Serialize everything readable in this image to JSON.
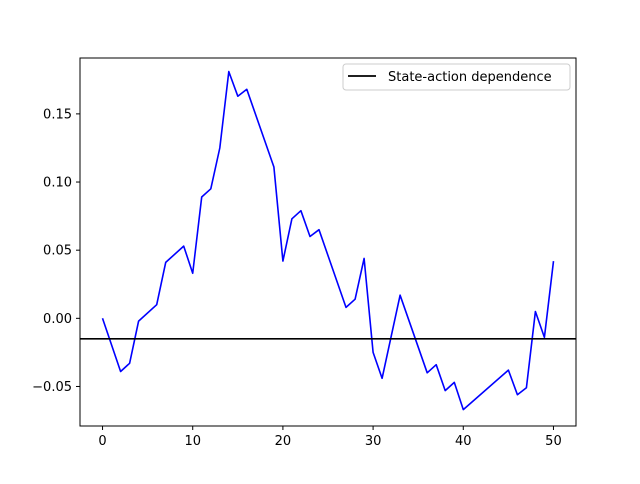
{
  "chart_data": {
    "type": "line",
    "title": "",
    "xlabel": "",
    "ylabel": "",
    "xlim": [
      -2.5,
      52.5
    ],
    "ylim": [
      -0.079,
      0.191
    ],
    "xticks": [
      0,
      10,
      20,
      30,
      40,
      50
    ],
    "xtick_labels": [
      "0",
      "10",
      "20",
      "30",
      "40",
      "50"
    ],
    "yticks": [
      -0.05,
      0.0,
      0.05,
      0.1,
      0.15
    ],
    "ytick_labels": [
      "−0.05",
      "0.00",
      "0.05",
      "0.10",
      "0.15"
    ],
    "grid": false,
    "legend_position": "upper right",
    "series": [
      {
        "color": "#0000ff",
        "x": [
          0,
          2,
          3,
          4,
          6,
          7,
          9,
          10,
          11,
          12,
          13,
          14,
          15,
          16,
          19,
          20,
          21,
          22,
          23,
          24,
          27,
          28,
          29,
          30,
          31,
          33,
          36,
          37,
          38,
          39,
          40,
          45,
          46,
          47,
          48,
          49,
          50
        ],
        "values": [
          0.0,
          -0.039,
          -0.033,
          -0.002,
          0.01,
          0.041,
          0.053,
          0.033,
          0.089,
          0.095,
          0.125,
          0.181,
          0.163,
          0.168,
          0.111,
          0.042,
          0.073,
          0.079,
          0.06,
          0.065,
          0.008,
          0.014,
          0.044,
          -0.025,
          -0.044,
          0.017,
          -0.04,
          -0.034,
          -0.053,
          -0.047,
          -0.067,
          -0.038,
          -0.056,
          -0.051,
          0.005,
          -0.014,
          0.042
        ]
      }
    ],
    "reference_lines": [
      {
        "name": "State-action dependence",
        "orientation": "horizontal",
        "y": -0.015,
        "color": "#000000"
      }
    ]
  }
}
